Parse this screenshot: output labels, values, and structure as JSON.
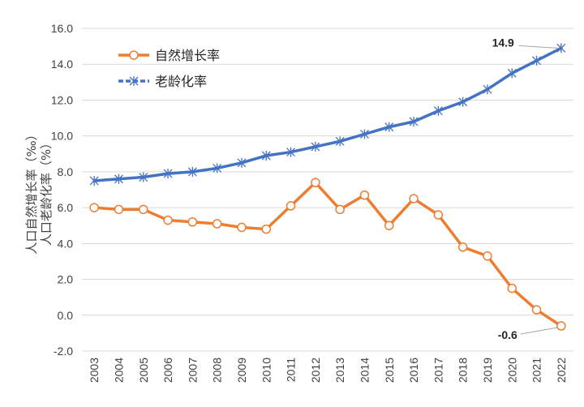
{
  "chart_data": {
    "type": "line",
    "categories": [
      "2003",
      "2004",
      "2005",
      "2006",
      "2007",
      "2008",
      "2009",
      "2010",
      "2011",
      "2012",
      "2013",
      "2014",
      "2015",
      "2016",
      "2017",
      "2018",
      "2019",
      "2020",
      "2021",
      "2022"
    ],
    "series": [
      {
        "name": "自然增长率",
        "color": "#ED7D31",
        "marker": "circle",
        "values": [
          6.0,
          5.9,
          5.9,
          5.3,
          5.2,
          5.1,
          4.9,
          4.8,
          6.1,
          7.4,
          5.9,
          6.7,
          5.0,
          6.5,
          5.6,
          3.8,
          3.3,
          1.5,
          0.3,
          -0.6
        ]
      },
      {
        "name": "老龄化率",
        "color": "#4472C4",
        "marker": "asterisk",
        "values": [
          7.5,
          7.6,
          7.7,
          7.9,
          8.0,
          8.2,
          8.5,
          8.9,
          9.1,
          9.4,
          9.7,
          10.1,
          10.5,
          10.8,
          11.4,
          11.9,
          12.6,
          13.5,
          14.2,
          14.9
        ]
      }
    ],
    "ylabel_line1": "人口自然增长率（‰）",
    "ylabel_line2": "人口老龄化率（%）",
    "ylim": [
      -2.0,
      16.0
    ],
    "yticks": [
      "-2.0",
      "0.0",
      "2.0",
      "4.0",
      "6.0",
      "8.0",
      "10.0",
      "12.0",
      "14.0",
      "16.0"
    ],
    "grid": "horizontal",
    "legend_position": "top-left",
    "annotations": [
      {
        "series": 1,
        "index": 19,
        "text": "14.9"
      },
      {
        "series": 0,
        "index": 19,
        "text": "-0.6"
      }
    ]
  }
}
